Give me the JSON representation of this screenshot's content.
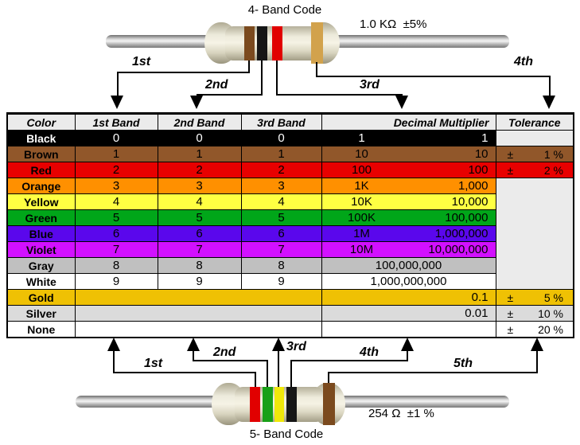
{
  "top_resistor": {
    "title": "4- Band Code",
    "value_label": "1.0 KΩ  ±5%",
    "band_colors": [
      "brown",
      "black",
      "red",
      "gold"
    ],
    "arrow_labels": [
      "1st",
      "2nd",
      "3rd",
      "4th"
    ]
  },
  "bottom_resistor": {
    "title": "5- Band Code",
    "value_label": "254 Ω  ±1 %",
    "band_colors": [
      "red",
      "green",
      "yellow",
      "black",
      "brown"
    ],
    "arrow_labels": [
      "1st",
      "2nd",
      "3rd",
      "4th",
      "5th"
    ]
  },
  "band_palette": {
    "brown": "#7B4A1E",
    "black": "#161616",
    "red": "#E10000",
    "gold": "#D2A24C",
    "green": "#18A018",
    "yellow": "#F0E80A"
  },
  "table": {
    "headers": [
      "Color",
      "1st Band",
      "2nd Band",
      "3rd Band",
      "Decimal Multiplier",
      "Tolerance"
    ],
    "header_bg": "#EBEBEB",
    "empty_tolerance_bg": "#EBEBEB",
    "rows": [
      {
        "name": "Black",
        "bg": "#000000",
        "fg": "#FFFFFF",
        "digits": [
          "0",
          "0",
          "0"
        ],
        "mult_short": "1",
        "mult": "1",
        "tol": null
      },
      {
        "name": "Brown",
        "bg": "#91572A",
        "fg": "#000000",
        "digits": [
          "1",
          "1",
          "1"
        ],
        "mult_short": "10",
        "mult": "10",
        "tol": {
          "sign": "±",
          "value": "1 %"
        }
      },
      {
        "name": "Red",
        "bg": "#E80000",
        "fg": "#000000",
        "digits": [
          "2",
          "2",
          "2"
        ],
        "mult_short": "100",
        "mult": "100",
        "tol": {
          "sign": "±",
          "value": "2 %"
        }
      },
      {
        "name": "Orange",
        "bg": "#FF9000",
        "fg": "#000000",
        "digits": [
          "3",
          "3",
          "3"
        ],
        "mult_short": "1K",
        "mult": "1,000",
        "tol": null
      },
      {
        "name": "Yellow",
        "bg": "#FFFF42",
        "fg": "#000000",
        "digits": [
          "4",
          "4",
          "4"
        ],
        "mult_short": "10K",
        "mult": "10,000",
        "tol": null
      },
      {
        "name": "Green",
        "bg": "#00A619",
        "fg": "#000000",
        "digits": [
          "5",
          "5",
          "5"
        ],
        "mult_short": "100K",
        "mult": "100,000",
        "tol": null
      },
      {
        "name": "Blue",
        "bg": "#5A07EC",
        "fg": "#000000",
        "digits": [
          "6",
          "6",
          "6"
        ],
        "mult_short": "1M",
        "mult": "1,000,000",
        "tol": null
      },
      {
        "name": "Violet",
        "bg": "#D210FF",
        "fg": "#000000",
        "digits": [
          "7",
          "7",
          "7"
        ],
        "mult_short": "10M",
        "mult": "10,000,000",
        "tol": null
      },
      {
        "name": "Gray",
        "bg": "#C0C0C0",
        "fg": "#000000",
        "digits": [
          "8",
          "8",
          "8"
        ],
        "mult_short": null,
        "mult": "100,000,000",
        "tol": null
      },
      {
        "name": "White",
        "bg": "#FFFFFF",
        "fg": "#000000",
        "digits": [
          "9",
          "9",
          "9"
        ],
        "mult_short": null,
        "mult": "1,000,000,000",
        "tol": null
      },
      {
        "name": "Gold",
        "bg": "#EFC104",
        "fg": "#000000",
        "digits": null,
        "mult_short": null,
        "mult": "0.1",
        "tol": {
          "sign": "±",
          "value": "5 %"
        }
      },
      {
        "name": "Silver",
        "bg": "#DBDBDB",
        "fg": "#000000",
        "digits": null,
        "mult_short": null,
        "mult": "0.01",
        "tol": {
          "sign": "±",
          "value": "10 %"
        }
      },
      {
        "name": "None",
        "bg": "#FFFFFF",
        "fg": "#000000",
        "digits": null,
        "mult_short": null,
        "mult": null,
        "tol": {
          "sign": "±",
          "value": "20 %"
        }
      }
    ]
  }
}
